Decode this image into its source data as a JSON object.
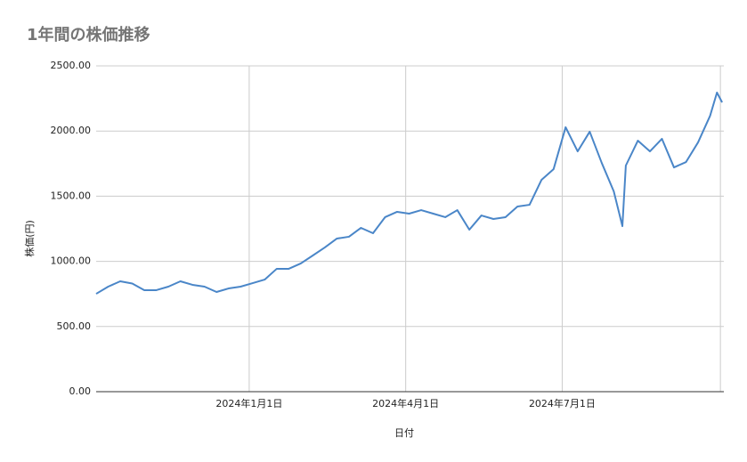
{
  "chart_data": {
    "type": "line",
    "title": "1年間の株価推移",
    "x_label": "日付",
    "y_label": "株価(円)",
    "x": [
      "2023-10-04",
      "2023-10-11",
      "2023-10-18",
      "2023-10-25",
      "2023-11-01",
      "2023-11-08",
      "2023-11-15",
      "2023-11-22",
      "2023-11-29",
      "2023-12-06",
      "2023-12-13",
      "2023-12-20",
      "2023-12-27",
      "2024-01-03",
      "2024-01-10",
      "2024-01-17",
      "2024-01-24",
      "2024-01-31",
      "2024-02-07",
      "2024-02-14",
      "2024-02-21",
      "2024-02-28",
      "2024-03-06",
      "2024-03-13",
      "2024-03-20",
      "2024-03-27",
      "2024-04-03",
      "2024-04-10",
      "2024-04-17",
      "2024-04-24",
      "2024-05-01",
      "2024-05-08",
      "2024-05-15",
      "2024-05-22",
      "2024-05-29",
      "2024-06-05",
      "2024-06-12",
      "2024-06-19",
      "2024-06-26",
      "2024-07-03",
      "2024-07-10",
      "2024-07-17",
      "2024-07-24",
      "2024-07-31",
      "2024-08-05",
      "2024-08-07",
      "2024-08-14",
      "2024-08-21",
      "2024-08-28",
      "2024-09-04",
      "2024-09-11",
      "2024-09-18",
      "2024-09-25",
      "2024-09-29",
      "2024-10-02"
    ],
    "series": [
      {
        "name": "株価",
        "color": "#4a86c8",
        "values": [
          751,
          806,
          847,
          830,
          779,
          779,
          806,
          847,
          820,
          806,
          765,
          792,
          806,
          833,
          860,
          943,
          943,
          984,
          1045,
          1107,
          1175,
          1189,
          1257,
          1216,
          1339,
          1380,
          1366,
          1393,
          1366,
          1339,
          1393,
          1243,
          1352,
          1325,
          1339,
          1421,
          1434,
          1626,
          1708,
          2029,
          1844,
          1995,
          1755,
          1537,
          1270,
          1735,
          1926,
          1844,
          1940,
          1721,
          1762,
          1913,
          2117,
          2295,
          2220
        ]
      }
    ],
    "xlim": [
      "2023-10-04",
      "2024-10-03"
    ],
    "xticks": [
      {
        "value": "2024-01-01",
        "label": "2024年1月1日"
      },
      {
        "value": "2024-04-01",
        "label": "2024年4月1日"
      },
      {
        "value": "2024-07-01",
        "label": "2024年7月1日"
      }
    ],
    "x_gridlines": [
      "2024-10-01"
    ],
    "ylim": [
      0,
      2500
    ],
    "yticks": [
      {
        "value": 0,
        "label": "0.00"
      },
      {
        "value": 500,
        "label": "500.00"
      },
      {
        "value": 1000,
        "label": "1000.00"
      },
      {
        "value": 1500,
        "label": "1500.00"
      },
      {
        "value": 2000,
        "label": "2000.00"
      },
      {
        "value": 2500,
        "label": "2500.00"
      }
    ],
    "grid": true
  }
}
